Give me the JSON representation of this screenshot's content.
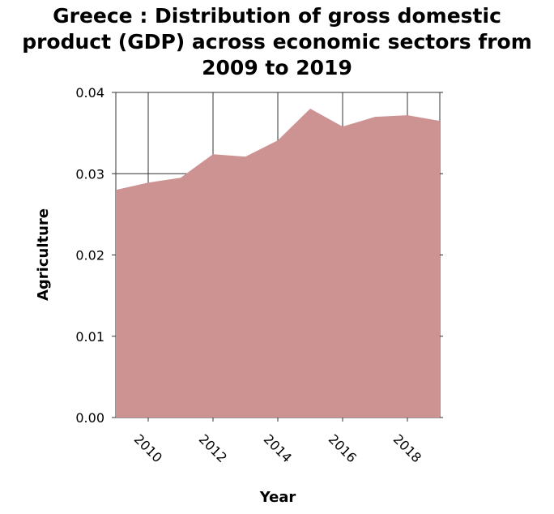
{
  "chart_data": {
    "type": "area",
    "title_lines": [
      "Greece : Distribution of gross domestic",
      "product (GDP) across economic sectors from",
      "2009 to 2019"
    ],
    "xlabel": "Year",
    "ylabel": "Agriculture",
    "x": [
      2009,
      2010,
      2011,
      2012,
      2013,
      2014,
      2015,
      2016,
      2017,
      2018,
      2019
    ],
    "series": [
      {
        "values": [
          0.028,
          0.0289,
          0.0295,
          0.0324,
          0.0321,
          0.0341,
          0.038,
          0.0358,
          0.037,
          0.0372,
          0.0365
        ]
      }
    ],
    "xlim": [
      2009,
      2019
    ],
    "ylim": [
      0,
      0.04
    ],
    "xticks": [
      2010,
      2012,
      2014,
      2016,
      2018
    ],
    "xtick_labels": [
      "2010",
      "2012",
      "2014",
      "2016",
      "2018"
    ],
    "yticks": [
      0,
      0.01,
      0.02,
      0.03,
      0.04
    ],
    "ytick_labels": [
      "0.00",
      "0.01",
      "0.02",
      "0.03",
      "0.04"
    ],
    "grid": true,
    "colors": {
      "area": "#cd9393",
      "grid": "#333333"
    }
  }
}
